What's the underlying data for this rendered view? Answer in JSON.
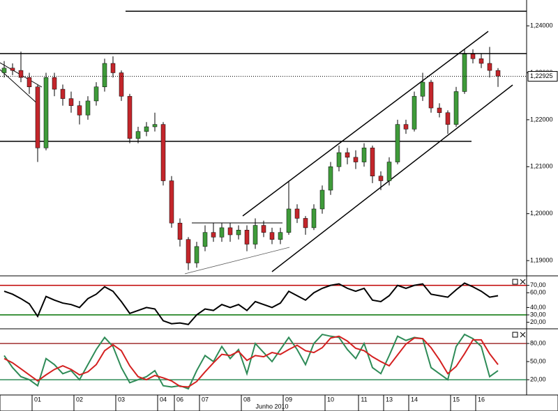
{
  "chart_data": [
    {
      "type": "candlestick",
      "categories": [
        null,
        null,
        null,
        null,
        "01",
        null,
        null,
        null,
        null,
        "02",
        null,
        null,
        null,
        null,
        "03",
        null,
        null,
        null,
        null,
        "04",
        null,
        "06",
        null,
        null,
        "07",
        null,
        null,
        null,
        null,
        "08",
        null,
        null,
        null,
        null,
        "09",
        null,
        null,
        null,
        null,
        "10",
        null,
        null,
        null,
        "11",
        null,
        null,
        "13",
        null,
        null,
        "14",
        null,
        null,
        null,
        null,
        "15",
        null,
        null,
        "16",
        null,
        null
      ],
      "x_label": "Junho 2010",
      "open": [
        1.23,
        1.231,
        1.2305,
        1.229,
        1.227,
        1.214,
        1.229,
        1.2265,
        1.2245,
        1.223,
        1.221,
        1.224,
        1.227,
        1.232,
        1.23,
        1.225,
        1.216,
        1.2175,
        1.2185,
        1.219,
        1.207,
        1.198,
        1.1945,
        1.1895,
        1.193,
        1.196,
        1.195,
        1.197,
        1.1955,
        1.1965,
        1.1935,
        1.1975,
        1.196,
        1.1945,
        1.196,
        1.201,
        1.199,
        1.197,
        1.201,
        1.205,
        1.21,
        1.213,
        1.212,
        1.211,
        1.214,
        1.208,
        1.207,
        1.211,
        1.219,
        1.218,
        1.225,
        1.228,
        1.2225,
        1.2215,
        1.219,
        1.226,
        1.234,
        1.233,
        1.232,
        1.2305
      ],
      "high": [
        1.2325,
        1.232,
        1.2345,
        1.23,
        1.2275,
        1.23,
        1.23,
        1.2275,
        1.226,
        1.224,
        1.225,
        1.228,
        1.233,
        1.2335,
        1.2305,
        1.2255,
        1.2185,
        1.2195,
        1.2215,
        1.2195,
        1.208,
        1.199,
        1.195,
        1.194,
        1.1975,
        1.198,
        1.198,
        1.198,
        1.1975,
        1.1975,
        1.199,
        1.1985,
        1.197,
        1.197,
        1.207,
        1.202,
        1.1995,
        1.202,
        1.206,
        1.211,
        1.2145,
        1.214,
        1.2135,
        1.215,
        1.2145,
        1.209,
        1.212,
        1.22,
        1.22,
        1.226,
        1.23,
        1.2285,
        1.2235,
        1.222,
        1.227,
        1.235,
        1.235,
        1.234,
        1.2355,
        1.231
      ],
      "low": [
        1.229,
        1.2295,
        1.228,
        1.2255,
        1.211,
        1.2135,
        1.225,
        1.223,
        1.2215,
        1.219,
        1.22,
        1.223,
        1.226,
        1.229,
        1.224,
        1.215,
        1.215,
        1.2165,
        1.2175,
        1.206,
        1.197,
        1.193,
        1.188,
        1.1885,
        1.192,
        1.194,
        1.194,
        1.194,
        1.1945,
        1.192,
        1.1925,
        1.195,
        1.1935,
        1.1935,
        1.1955,
        1.198,
        1.1955,
        1.1965,
        1.2,
        1.204,
        1.209,
        1.2105,
        1.2095,
        1.21,
        1.2065,
        1.205,
        1.206,
        1.2105,
        1.217,
        1.2175,
        1.224,
        1.2215,
        1.2205,
        1.217,
        1.2185,
        1.2255,
        1.232,
        1.231,
        1.229,
        1.227
      ],
      "close": [
        1.231,
        1.2305,
        1.229,
        1.227,
        1.214,
        1.229,
        1.2265,
        1.2245,
        1.223,
        1.221,
        1.224,
        1.227,
        1.232,
        1.23,
        1.225,
        1.216,
        1.2175,
        1.2185,
        1.219,
        1.207,
        1.198,
        1.1945,
        1.1895,
        1.193,
        1.196,
        1.195,
        1.197,
        1.1955,
        1.1965,
        1.1935,
        1.1975,
        1.196,
        1.1945,
        1.196,
        1.201,
        1.199,
        1.197,
        1.201,
        1.205,
        1.21,
        1.213,
        1.212,
        1.211,
        1.214,
        1.208,
        1.207,
        1.211,
        1.219,
        1.218,
        1.225,
        1.228,
        1.2225,
        1.2215,
        1.219,
        1.226,
        1.234,
        1.233,
        1.232,
        1.2305,
        1.2293
      ],
      "up_color": "#3f9b3a",
      "down_color": "#c3262b",
      "ylim": [
        1.1869,
        1.2455
      ],
      "yticks": [
        {
          "value": 1.19,
          "label": "1,19000"
        },
        {
          "value": 1.2,
          "label": "1,20000"
        },
        {
          "value": 1.21,
          "label": "1,21000"
        },
        {
          "value": 1.22,
          "label": "1,22000"
        },
        {
          "value": 1.23,
          "label": "1,23000"
        },
        {
          "value": 1.24,
          "label": "1,24000"
        }
      ],
      "hlines": [
        1.2431,
        1.2341,
        1.2154
      ],
      "last": {
        "value": 1.22925,
        "label": "1,22925"
      }
    },
    {
      "type": "line",
      "series": [
        {
          "color": "#000000",
          "values": [
            62,
            58,
            52,
            45,
            28,
            55,
            50,
            46,
            44,
            40,
            52,
            58,
            68,
            62,
            48,
            32,
            36,
            40,
            38,
            22,
            18,
            19,
            17,
            30,
            38,
            36,
            44,
            40,
            44,
            36,
            48,
            44,
            40,
            46,
            62,
            56,
            50,
            60,
            66,
            70,
            72,
            66,
            62,
            66,
            50,
            48,
            56,
            70,
            66,
            70,
            72,
            58,
            56,
            54,
            64,
            73,
            68,
            62,
            54,
            56
          ]
        }
      ],
      "ylim": [
        13,
        81
      ],
      "yticks": [
        {
          "value": 70,
          "label": "70,00"
        },
        {
          "value": 60,
          "label": "60,00"
        },
        {
          "value": 40,
          "label": "40,00"
        },
        {
          "value": 30,
          "label": "30,00"
        },
        {
          "value": 20,
          "label": "20,00"
        }
      ],
      "levels": [
        {
          "value": 70,
          "color": "#c00000"
        },
        {
          "value": 30,
          "color": "#007000"
        }
      ]
    },
    {
      "type": "line",
      "series": [
        {
          "color": "#2e8b57",
          "values": [
            60,
            40,
            25,
            20,
            10,
            55,
            45,
            30,
            35,
            20,
            45,
            70,
            90,
            75,
            40,
            15,
            20,
            25,
            35,
            10,
            8,
            10,
            5,
            35,
            60,
            50,
            75,
            55,
            70,
            30,
            80,
            65,
            50,
            70,
            90,
            70,
            45,
            80,
            95,
            92,
            90,
            70,
            55,
            80,
            40,
            30,
            60,
            92,
            85,
            90,
            88,
            40,
            30,
            20,
            75,
            95,
            88,
            75,
            25,
            35
          ]
        },
        {
          "color": "#d42020",
          "values": [
            55,
            48,
            38,
            28,
            18,
            28,
            37,
            43,
            37,
            28,
            33,
            45,
            68,
            78,
            68,
            43,
            25,
            20,
            27,
            23,
            18,
            9,
            8,
            17,
            33,
            48,
            62,
            60,
            67,
            52,
            60,
            58,
            65,
            62,
            70,
            77,
            68,
            65,
            73,
            89,
            92,
            84,
            72,
            68,
            58,
            50,
            43,
            61,
            79,
            89,
            88,
            73,
            53,
            30,
            42,
            63,
            86,
            86,
            63,
            45
          ]
        }
      ],
      "ylim": [
        -3,
        102
      ],
      "yticks": [
        {
          "value": 80,
          "label": "80,00"
        },
        {
          "value": 50,
          "label": "50,00"
        },
        {
          "value": 20,
          "label": "20,00"
        }
      ],
      "levels": [
        {
          "value": 80,
          "color": "#a03030"
        },
        {
          "value": 20,
          "color": "#2e8b57"
        }
      ]
    }
  ]
}
